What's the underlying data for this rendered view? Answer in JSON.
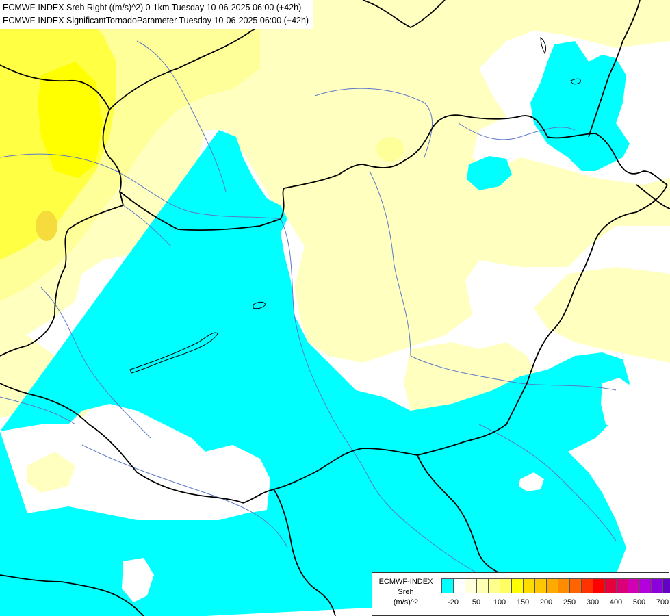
{
  "map": {
    "title_line_1": "ECMWF-INDEX Sreh Right ((m/s)^2) 0-1km Tuesday 10-06-2025 06:00 (+42h)",
    "title_line_2": "ECMWF-INDEX SignificantTornadoParameter Tuesday 10-06-2025 06:00 (+42h)",
    "colors": {
      "cyan": "#00ffff",
      "white": "#ffffff",
      "pale_yellow": "#ffffc0",
      "light_yellow": "#ffff99",
      "yellow": "#ffff33",
      "bright_yellow": "#ffff00",
      "gold": "#f5dc3c",
      "border": "#000000",
      "river": "#5a78c8"
    }
  },
  "legend": {
    "source": "ECMWF-INDEX",
    "variable": "Sreh",
    "unit": "(m/s)^2",
    "swatches": [
      "#00ffff",
      "#ffffff",
      "#ffffdc",
      "#ffffb4",
      "#ffff8c",
      "#ffff64",
      "#ffff00",
      "#ffdc00",
      "#ffc800",
      "#ffaa00",
      "#ff8c00",
      "#ff6400",
      "#ff3200",
      "#ff0000",
      "#e6003c",
      "#dc0078",
      "#d200b4",
      "#b400dc",
      "#8c00dc",
      "#6400c8",
      "#3c00b4",
      "#1e0096"
    ],
    "ticks": [
      "-20",
      "50",
      "100",
      "150",
      "200",
      "250",
      "300",
      "400",
      "500",
      "700"
    ]
  }
}
